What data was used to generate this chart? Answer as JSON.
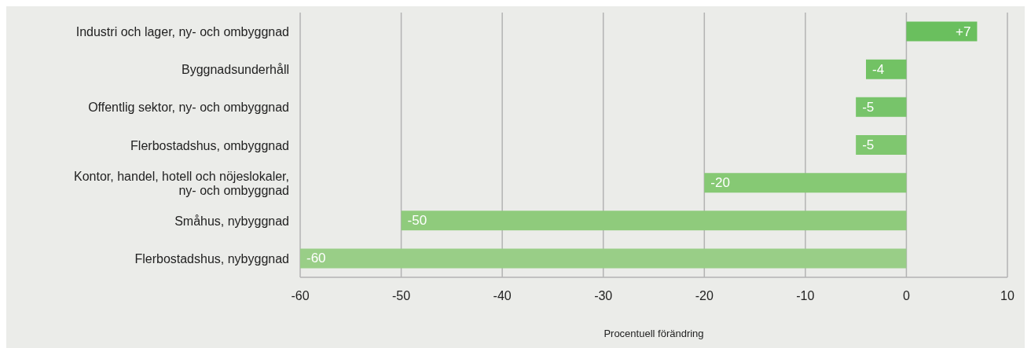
{
  "chart_data": {
    "type": "bar",
    "orientation": "horizontal",
    "xlabel": "Procentuell förändring",
    "categories": [
      "Industri och lager, ny- och ombyggnad",
      "Byggnadsunderhåll",
      "Offentlig sektor, ny- och ombyggnad",
      "Flerbostadshus, ombyggnad",
      "Kontor, handel, hotell och nöjeslokaler, ny- och ombyggnad",
      "Småhus, nybyggnad",
      "Flerbostadshus, nybyggnad"
    ],
    "values": [
      7,
      -4,
      -5,
      -5,
      -20,
      -50,
      -60
    ],
    "value_labels": [
      "+7",
      "-4",
      "-5",
      "-5",
      "-20",
      "-50",
      "-60"
    ],
    "colors": [
      "#6abf5e",
      "#72c264",
      "#77c46a",
      "#7fc76f",
      "#86c974",
      "#8fcb7c",
      "#99ce87"
    ],
    "xlim": [
      -60,
      10
    ],
    "xticks": [
      -60,
      -50,
      -40,
      -30,
      -20,
      -10,
      0,
      10
    ],
    "grid": "x"
  }
}
